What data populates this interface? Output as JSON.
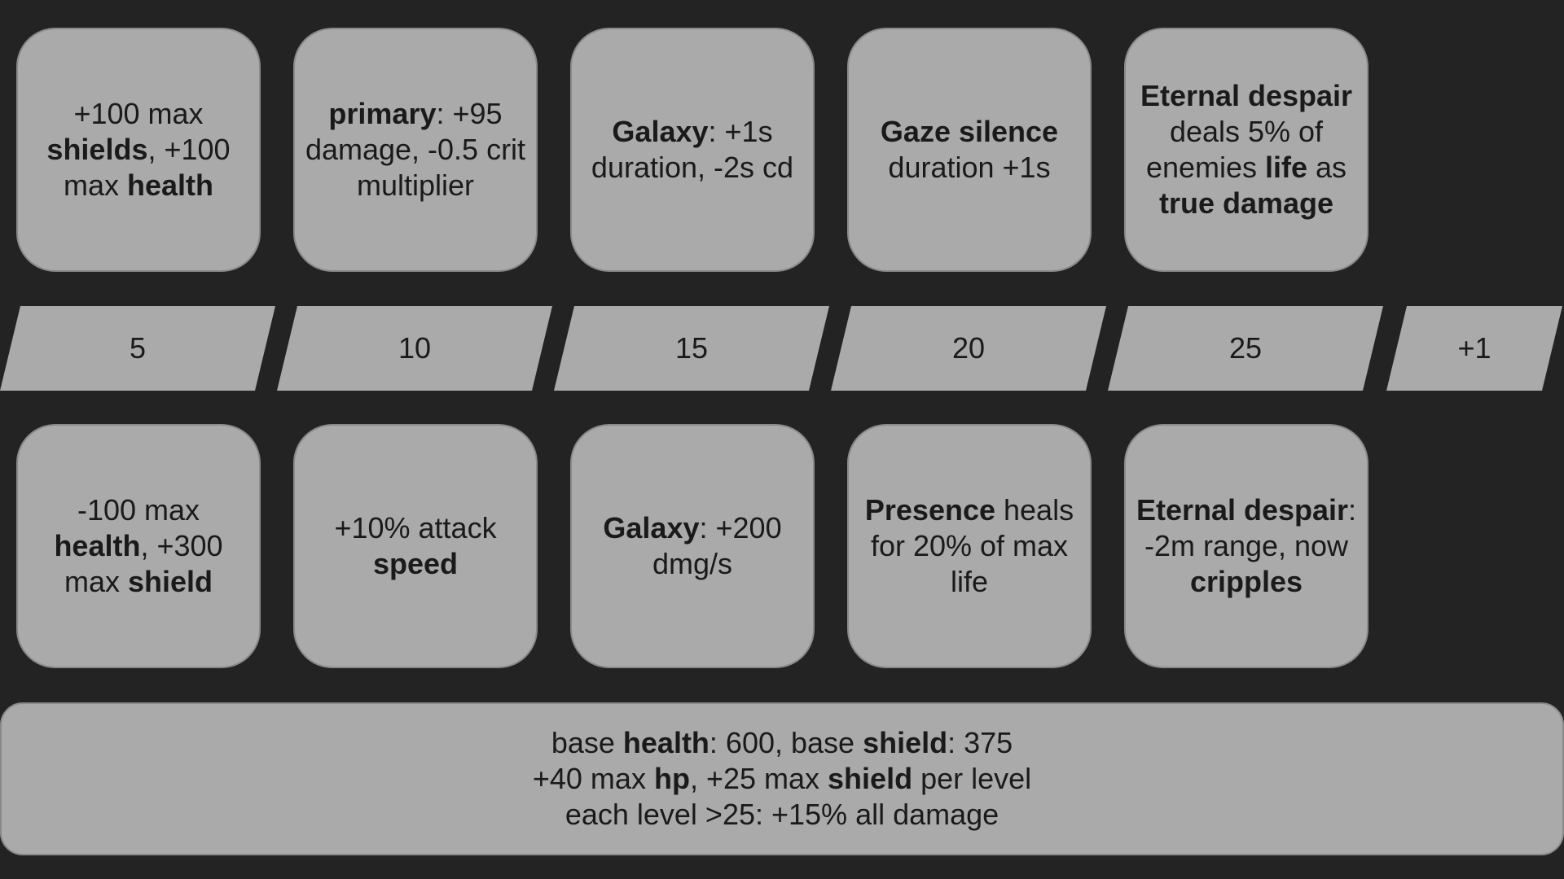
{
  "top_row": [
    {
      "parts": [
        {
          "t": "+100 max "
        },
        {
          "t": "shields",
          "b": true
        },
        {
          "t": ", +100 max "
        },
        {
          "t": "health",
          "b": true
        }
      ]
    },
    {
      "parts": [
        {
          "t": "primary",
          "b": true
        },
        {
          "t": ": +95 damage, -0.5 crit multiplier"
        }
      ]
    },
    {
      "parts": [
        {
          "t": "Galaxy",
          "b": true
        },
        {
          "t": ": +1s duration, -2s cd"
        }
      ]
    },
    {
      "parts": [
        {
          "t": "Gaze silence",
          "b": true
        },
        {
          "t": " duration +1s"
        }
      ]
    },
    {
      "parts": [
        {
          "t": "Eternal despair",
          "b": true
        },
        {
          "t": " deals 5% of enemies "
        },
        {
          "t": "life",
          "b": true
        },
        {
          "t": " as "
        },
        {
          "t": "true damage",
          "b": true
        }
      ]
    }
  ],
  "levels": [
    "5",
    "10",
    "15",
    "20",
    "25",
    "+1"
  ],
  "bottom_row": [
    {
      "parts": [
        {
          "t": "-100 max "
        },
        {
          "t": "health",
          "b": true
        },
        {
          "t": ", +300 max "
        },
        {
          "t": "shield",
          "b": true
        }
      ]
    },
    {
      "parts": [
        {
          "t": "+10% attack "
        },
        {
          "t": "speed",
          "b": true
        }
      ]
    },
    {
      "parts": [
        {
          "t": "Galaxy",
          "b": true
        },
        {
          "t": ": +200 dmg/s"
        }
      ]
    },
    {
      "parts": [
        {
          "t": "Presence",
          "b": true
        },
        {
          "t": " heals for 20% of max life"
        }
      ]
    },
    {
      "parts": [
        {
          "t": "Eternal despair",
          "b": true
        },
        {
          "t": ": -2m range, now "
        },
        {
          "t": "cripples",
          "b": true
        }
      ]
    }
  ],
  "base_stats": {
    "line1": [
      {
        "t": "base "
      },
      {
        "t": "health",
        "b": true
      },
      {
        "t": ": 600, base "
      },
      {
        "t": "shield",
        "b": true
      },
      {
        "t": ": 375"
      }
    ],
    "line2": [
      {
        "t": "+40 max "
      },
      {
        "t": "hp",
        "b": true
      },
      {
        "t": ", +25 max "
      },
      {
        "t": "shield",
        "b": true
      },
      {
        "t": " per level"
      }
    ],
    "line3": [
      {
        "t": "each level >25: +15% all damage"
      }
    ]
  },
  "colors": {
    "background": "#232323",
    "card": "#aaaaaa",
    "text": "#1a1a1a"
  }
}
